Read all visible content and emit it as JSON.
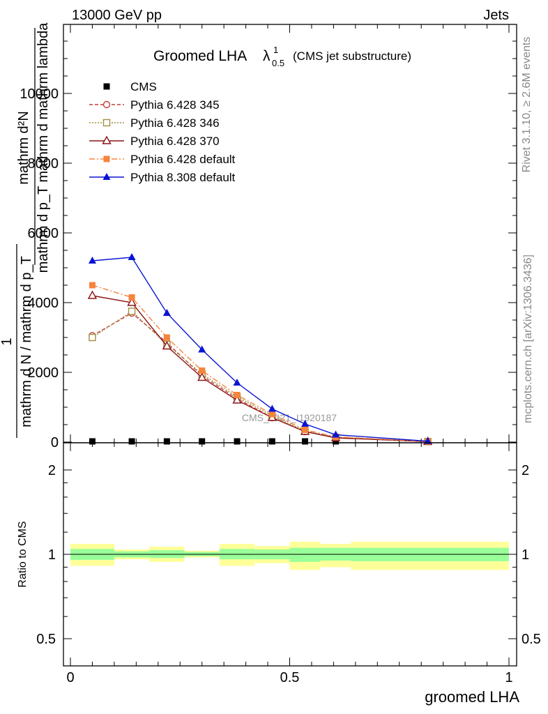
{
  "header": {
    "left": "13000 GeV pp",
    "right": "Jets"
  },
  "side_text": {
    "rivet": "Rivet 3.1.10, ≥ 2.6M events",
    "mcplots": "mcplots.cern.ch [arXiv:1306.3436]"
  },
  "watermark": "CMS_2021_I1920187",
  "title": {
    "main": "Groomed LHA",
    "lambda": "λ",
    "sup": "1",
    "sub": "0.5",
    "suffix": "(CMS jet substructure)"
  },
  "ylabel_upper": {
    "numerator": "mathrm d²N",
    "denominator": "mathrm d p_T mathrm d mathrm lambda",
    "numerator2": "1",
    "denominator2": "mathrm d N / mathrm d p_T",
    "combined_top": "mathrm d²N",
    "overlap_text": "mathrm d p_T mathrm d mathrm lambda",
    "lower_frac_num": "1",
    "lower_frac_den": "mathrm d N / mathrm d p_T"
  },
  "ylabel_lower": "Ratio to CMS",
  "xlabel": "groomed LHA",
  "colors": {
    "cms": "#000000",
    "p345": "#c83c3c",
    "p346": "#a08c3c",
    "p370": "#8c1414",
    "pdef6": "#f5843c",
    "pdef8": "#0a14d2",
    "band_inner": "#99ff99",
    "band_outer": "#ffff99"
  },
  "chart_data": [
    {
      "type": "line",
      "panel": "main",
      "x": [
        0.05,
        0.14,
        0.22,
        0.3,
        0.38,
        0.46,
        0.535,
        0.605,
        0.815
      ],
      "ylim": [
        0,
        12000
      ],
      "xlim": [
        0,
        1
      ],
      "yticks": [
        0,
        2000,
        4000,
        6000,
        8000,
        10000
      ],
      "ytick_labels": [
        "0",
        "2000",
        "4000",
        "6000",
        "8000",
        "10000"
      ],
      "series": [
        {
          "name": "CMS",
          "marker": "square",
          "color_key": "cms",
          "dash": "",
          "values": [
            0,
            0,
            0,
            0,
            0,
            0,
            0,
            0,
            0
          ]
        },
        {
          "name": "Pythia 6.428 345",
          "marker": "circle-open",
          "color_key": "p345",
          "dash": "5,3",
          "values": [
            3050,
            3700,
            2850,
            1900,
            1250,
            700,
            300,
            130,
            15
          ]
        },
        {
          "name": "Pythia 6.428 346",
          "marker": "square-open",
          "color_key": "p346",
          "dash": "2,2",
          "values": [
            3000,
            3750,
            2800,
            1950,
            1300,
            750,
            320,
            140,
            15
          ]
        },
        {
          "name": "Pythia 6.428 370",
          "marker": "triangle-open",
          "color_key": "p370",
          "dash": "",
          "values": [
            4200,
            4000,
            2750,
            1850,
            1200,
            700,
            300,
            120,
            12
          ]
        },
        {
          "name": "Pythia 6.428 default",
          "marker": "square",
          "color_key": "pdef6",
          "dash": "8,3,2,3",
          "values": [
            4500,
            4150,
            3000,
            2050,
            1350,
            800,
            350,
            150,
            15
          ]
        },
        {
          "name": "Pythia 8.308 default",
          "marker": "triangle",
          "color_key": "pdef8",
          "dash": "",
          "values": [
            5200,
            5300,
            3700,
            2650,
            1700,
            950,
            520,
            210,
            25
          ]
        }
      ]
    },
    {
      "type": "area",
      "panel": "ratio",
      "ylabel": "Ratio to CMS",
      "xlabel": "groomed LHA",
      "xlim": [
        0,
        1
      ],
      "ylim": [
        0.35,
        2.35
      ],
      "xticks": [
        0,
        0.5,
        1
      ],
      "xtick_labels": [
        "0",
        "0.5",
        "1"
      ],
      "yticks": [
        0.5,
        1,
        2
      ],
      "ytick_labels": [
        "0.5",
        "1",
        "2"
      ],
      "bins": [
        {
          "lo": 0.0,
          "hi": 0.1,
          "inner": [
            0.955,
            1.045
          ],
          "outer": [
            0.91,
            1.09
          ]
        },
        {
          "lo": 0.1,
          "hi": 0.18,
          "inner": [
            0.975,
            1.025
          ],
          "outer": [
            0.96,
            1.04
          ]
        },
        {
          "lo": 0.18,
          "hi": 0.26,
          "inner": [
            0.97,
            1.035
          ],
          "outer": [
            0.94,
            1.065
          ]
        },
        {
          "lo": 0.26,
          "hi": 0.34,
          "inner": [
            0.985,
            1.02
          ],
          "outer": [
            0.975,
            1.03
          ]
        },
        {
          "lo": 0.34,
          "hi": 0.42,
          "inner": [
            0.96,
            1.045
          ],
          "outer": [
            0.91,
            1.09
          ]
        },
        {
          "lo": 0.42,
          "hi": 0.5,
          "inner": [
            0.96,
            1.04
          ],
          "outer": [
            0.93,
            1.07
          ]
        },
        {
          "lo": 0.5,
          "hi": 0.57,
          "inner": [
            0.94,
            1.055
          ],
          "outer": [
            0.88,
            1.11
          ]
        },
        {
          "lo": 0.57,
          "hi": 0.64,
          "inner": [
            0.95,
            1.055
          ],
          "outer": [
            0.9,
            1.09
          ]
        },
        {
          "lo": 0.64,
          "hi": 1.0,
          "inner": [
            0.945,
            1.055
          ],
          "outer": [
            0.88,
            1.11
          ]
        }
      ]
    }
  ]
}
